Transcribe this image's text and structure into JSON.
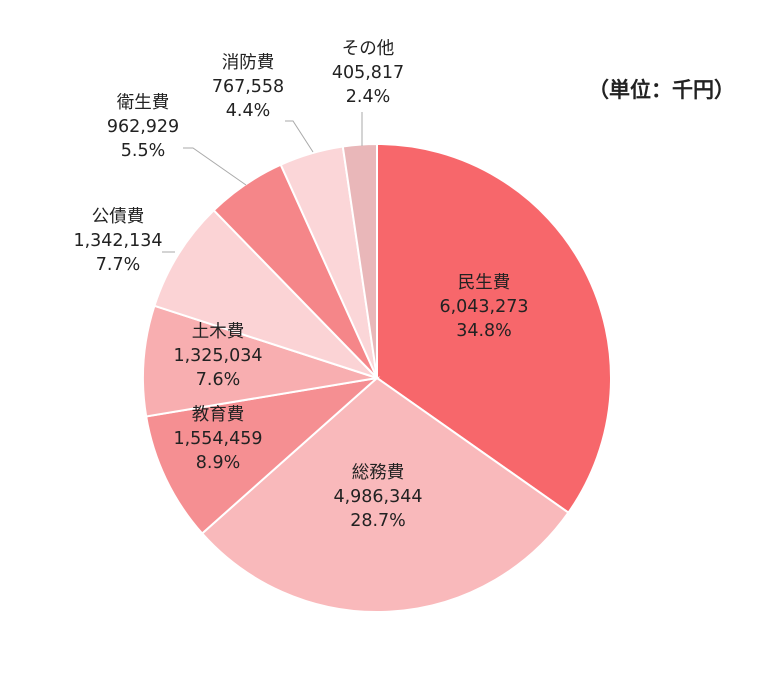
{
  "unit_label": "（単位：千円）",
  "chart_data": {
    "type": "pie",
    "unit": "千円",
    "start_angle_deg": 0,
    "direction": "clockwise",
    "slices": [
      {
        "name": "民生費",
        "value": 6043273,
        "value_label": "6,043,273",
        "percent_label": "34.8%",
        "color": "#f7676b"
      },
      {
        "name": "総務費",
        "value": 4986344,
        "value_label": "4,986,344",
        "percent_label": "28.7%",
        "color": "#f9b9bb"
      },
      {
        "name": "教育費",
        "value": 1554459,
        "value_label": "1,554,459",
        "percent_label": "8.9%",
        "color": "#f58f92"
      },
      {
        "name": "土木費",
        "value": 1325034,
        "value_label": "1,325,034",
        "percent_label": "7.6%",
        "color": "#f8aeb0"
      },
      {
        "name": "公債費",
        "value": 1342134,
        "value_label": "1,342,134",
        "percent_label": "7.7%",
        "color": "#fbd3d5"
      },
      {
        "name": "衛生費",
        "value": 962929,
        "value_label": "962,929",
        "percent_label": "5.5%",
        "color": "#f58689"
      },
      {
        "name": "消防費",
        "value": 767558,
        "value_label": "767,558",
        "percent_label": "4.4%",
        "color": "#fbd6d8"
      },
      {
        "name": "その他",
        "value": 405817,
        "value_label": "405,817",
        "percent_label": "2.4%",
        "color": "#e9b7b9"
      }
    ]
  }
}
